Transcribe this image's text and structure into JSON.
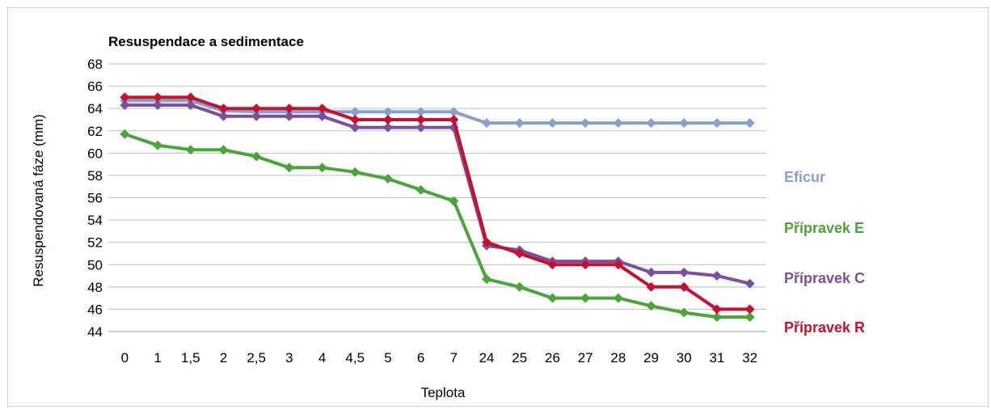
{
  "chart_data": {
    "type": "line",
    "title": "Resuspendace a sedimentace",
    "xlabel": "Teplota",
    "ylabel": "Resuspendovaná fáze (mm)",
    "ylim": [
      44,
      68
    ],
    "yticks": [
      "68",
      "66",
      "64",
      "62",
      "60",
      "58",
      "56",
      "54",
      "52",
      "50",
      "48",
      "46",
      "44"
    ],
    "categories": [
      "0",
      "1",
      "1,5",
      "2",
      "2,5",
      "3",
      "4",
      "4,5",
      "5",
      "6",
      "7",
      "24",
      "25",
      "26",
      "27",
      "28",
      "29",
      "30",
      "31",
      "32"
    ],
    "grid": "horizontal",
    "legend_position": "right",
    "series": [
      {
        "name": "Eficur",
        "color": "#8a9fd1",
        "values": [
          64.7,
          64.7,
          64.7,
          63.8,
          63.7,
          63.7,
          63.7,
          63.7,
          63.7,
          63.7,
          63.7,
          62.7,
          62.7,
          62.7,
          62.7,
          62.7,
          62.7,
          62.7,
          62.7,
          62.7
        ]
      },
      {
        "name": "Přípravek E",
        "color": "#4aa43a",
        "values": [
          61.7,
          60.7,
          60.3,
          60.3,
          59.7,
          58.7,
          58.7,
          58.3,
          57.7,
          56.7,
          55.7,
          48.7,
          48.0,
          47.0,
          47.0,
          47.0,
          46.3,
          45.7,
          45.3,
          45.3
        ]
      },
      {
        "name": "Přípravek C",
        "color": "#7b4fa0",
        "values": [
          64.3,
          64.3,
          64.3,
          63.3,
          63.3,
          63.3,
          63.3,
          62.3,
          62.3,
          62.3,
          62.3,
          51.7,
          51.3,
          50.3,
          50.3,
          50.3,
          49.3,
          49.3,
          49.0,
          48.3
        ]
      },
      {
        "name": "Přípravek R",
        "color": "#c8102e",
        "values": [
          65.0,
          65.0,
          65.0,
          64.0,
          64.0,
          64.0,
          64.0,
          63.0,
          63.0,
          63.0,
          63.0,
          52.0,
          51.0,
          50.0,
          50.0,
          50.0,
          48.0,
          48.0,
          46.0,
          46.0
        ]
      }
    ],
    "legend": [
      {
        "name": "Eficur",
        "color": "#8a9fd1"
      },
      {
        "name": "Přípravek E",
        "color": "#4aa43a"
      },
      {
        "name": "Přípravek C",
        "color": "#7b4fa0"
      },
      {
        "name": "Přípravek R",
        "color": "#c8102e"
      }
    ]
  }
}
